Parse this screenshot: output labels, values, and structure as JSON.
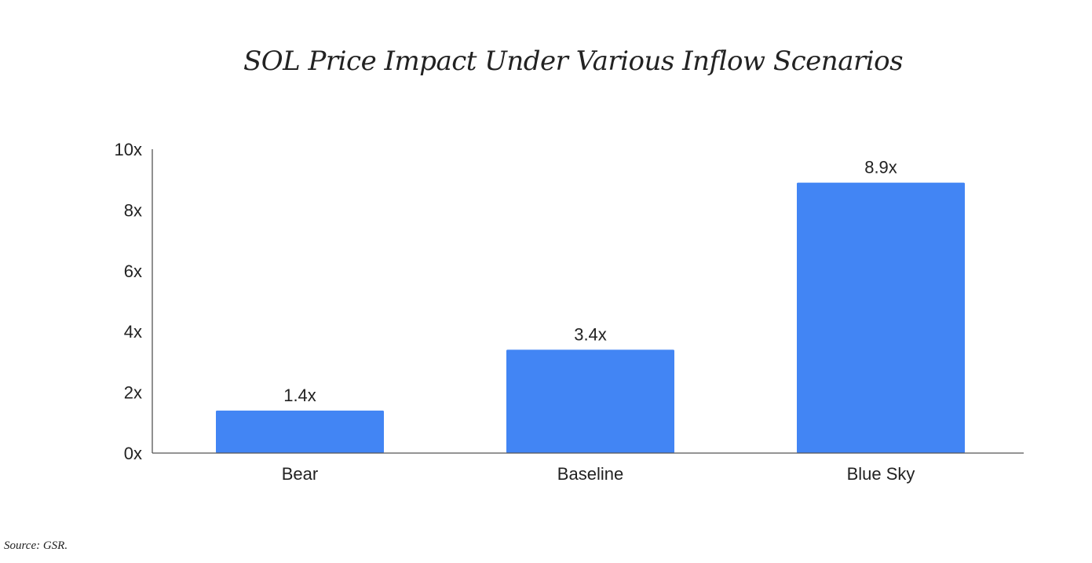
{
  "chart_data": {
    "type": "bar",
    "title": "SOL Price Impact Under Various Inflow Scenarios",
    "categories": [
      "Bear",
      "Baseline",
      "Blue Sky"
    ],
    "values": [
      1.4,
      3.4,
      8.9
    ],
    "data_labels": [
      "1.4x",
      "3.4x",
      "8.9x"
    ],
    "xlabel": "",
    "ylabel": "",
    "ylim": [
      0,
      10
    ],
    "yticks": [
      0,
      2,
      4,
      6,
      8,
      10
    ],
    "ytick_labels": [
      "0x",
      "2x",
      "4x",
      "6x",
      "8x",
      "10x"
    ],
    "grid": false,
    "legend": "none",
    "bar_color": "#4285F4"
  },
  "source": "Source: GSR."
}
